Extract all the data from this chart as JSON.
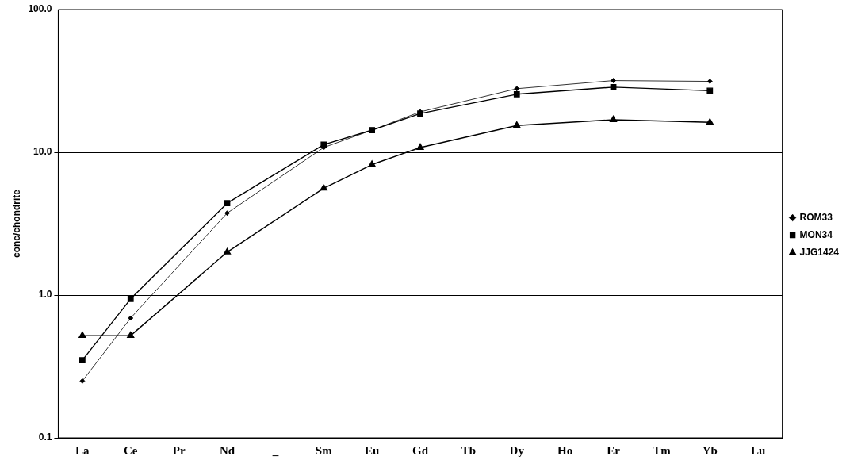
{
  "chart_data": {
    "type": "line",
    "ylabel": "conc/chondrite",
    "categories": [
      "La",
      "Ce",
      "Pr",
      "Nd",
      "_",
      "Sm",
      "Eu",
      "Gd",
      "Tb",
      "Dy",
      "Ho",
      "Er",
      "Tm",
      "Yb",
      "Lu"
    ],
    "series": [
      {
        "name": "ROM33",
        "color": "#000000",
        "marker": "diamond",
        "values": [
          0.25,
          0.69,
          null,
          3.75,
          null,
          10.8,
          14.3,
          19.2,
          null,
          27.9,
          null,
          31.8,
          null,
          31.4,
          null
        ]
      },
      {
        "name": "MON34",
        "color": "#000000",
        "marker": "square",
        "values": [
          0.35,
          0.94,
          null,
          4.4,
          null,
          11.3,
          14.3,
          18.7,
          null,
          25.5,
          null,
          28.6,
          null,
          27.0,
          null
        ]
      },
      {
        "name": "JJG1424",
        "color": "#000000",
        "marker": "triangle",
        "values": [
          0.52,
          0.52,
          null,
          2.0,
          null,
          5.6,
          8.2,
          10.8,
          null,
          15.4,
          null,
          16.9,
          null,
          16.2,
          null
        ]
      }
    ],
    "log": "y",
    "ylim": [
      0.1,
      100
    ],
    "yticks": [
      {
        "value": 0.1,
        "label": "0.1"
      },
      {
        "value": 1,
        "label": "1.0"
      },
      {
        "value": 10,
        "label": "10.0"
      },
      {
        "value": 100,
        "label": "100.0"
      }
    ],
    "grid": "y",
    "legend": "right"
  }
}
